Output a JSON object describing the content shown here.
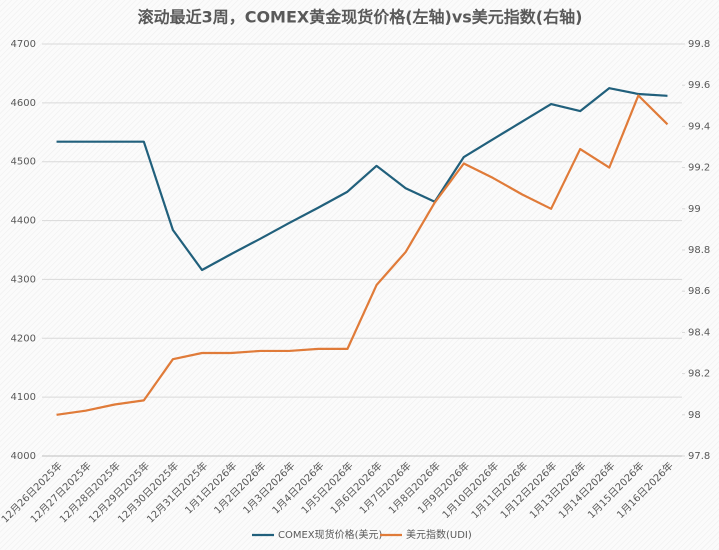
{
  "chart_data": {
    "type": "line",
    "title": "滚动最近3周，COMEX黄金现货价格(左轴)vs美元指数(右轴)",
    "categories": [
      "12月26日2025年",
      "12月27日2025年",
      "12月28日2025年",
      "12月29日2025年",
      "12月30日2025年",
      "12月31日2025年",
      "1月1日2026年",
      "1月2日2026年",
      "1月3日2026年",
      "1月4日2026年",
      "1月5日2026年",
      "1月6日2026年",
      "1月7日2026年",
      "1月8日2026年",
      "1月9日2026年",
      "1月10日2026年",
      "1月11日2026年",
      "1月12日2026年",
      "1月13日2026年",
      "1月14日2026年",
      "1月15日2026年",
      "1月16日2026年"
    ],
    "series": [
      {
        "name": "COMEX现货价格(美元)",
        "color": "#21607c",
        "values": [
          4534,
          4534,
          4534,
          4534,
          4384,
          4316,
          4343,
          4369,
          4396,
          4422,
          4449,
          4493,
          4455,
          4432,
          4508,
          4538,
          4568,
          4598,
          4586,
          4625,
          4615,
          4612
        ]
      },
      {
        "name": "美元指数(UDI)",
        "color": "#e07b39",
        "axis": "y2",
        "values": [
          98.0,
          98.02,
          98.05,
          98.07,
          98.27,
          98.3,
          98.3,
          98.31,
          98.31,
          98.32,
          98.32,
          98.63,
          98.79,
          99.03,
          99.22,
          99.15,
          99.07,
          99.0,
          99.29,
          99.2,
          99.55,
          99.41
        ]
      }
    ],
    "ylim": [
      4000,
      4700
    ],
    "yticks": [
      4000,
      4100,
      4200,
      4300,
      4400,
      4500,
      4600,
      4700
    ],
    "y2lim": [
      97.8,
      99.8
    ],
    "y2ticks": [
      {
        "value": 97.8,
        "label": "97.8"
      },
      {
        "value": 98,
        "label": "98"
      },
      {
        "value": 98.2,
        "label": "98.2"
      },
      {
        "value": 98.4,
        "label": "98.4"
      },
      {
        "value": 98.6,
        "label": "98.6"
      },
      {
        "value": 98.8,
        "label": "98.8"
      },
      {
        "value": 99,
        "label": "99"
      },
      {
        "value": 99.2,
        "label": "99.2"
      },
      {
        "value": 99.4,
        "label": "99.4"
      },
      {
        "value": 99.6,
        "label": "99.6"
      },
      {
        "value": 99.8,
        "label": "99.8"
      }
    ],
    "grid": true,
    "legend": "bottom"
  }
}
